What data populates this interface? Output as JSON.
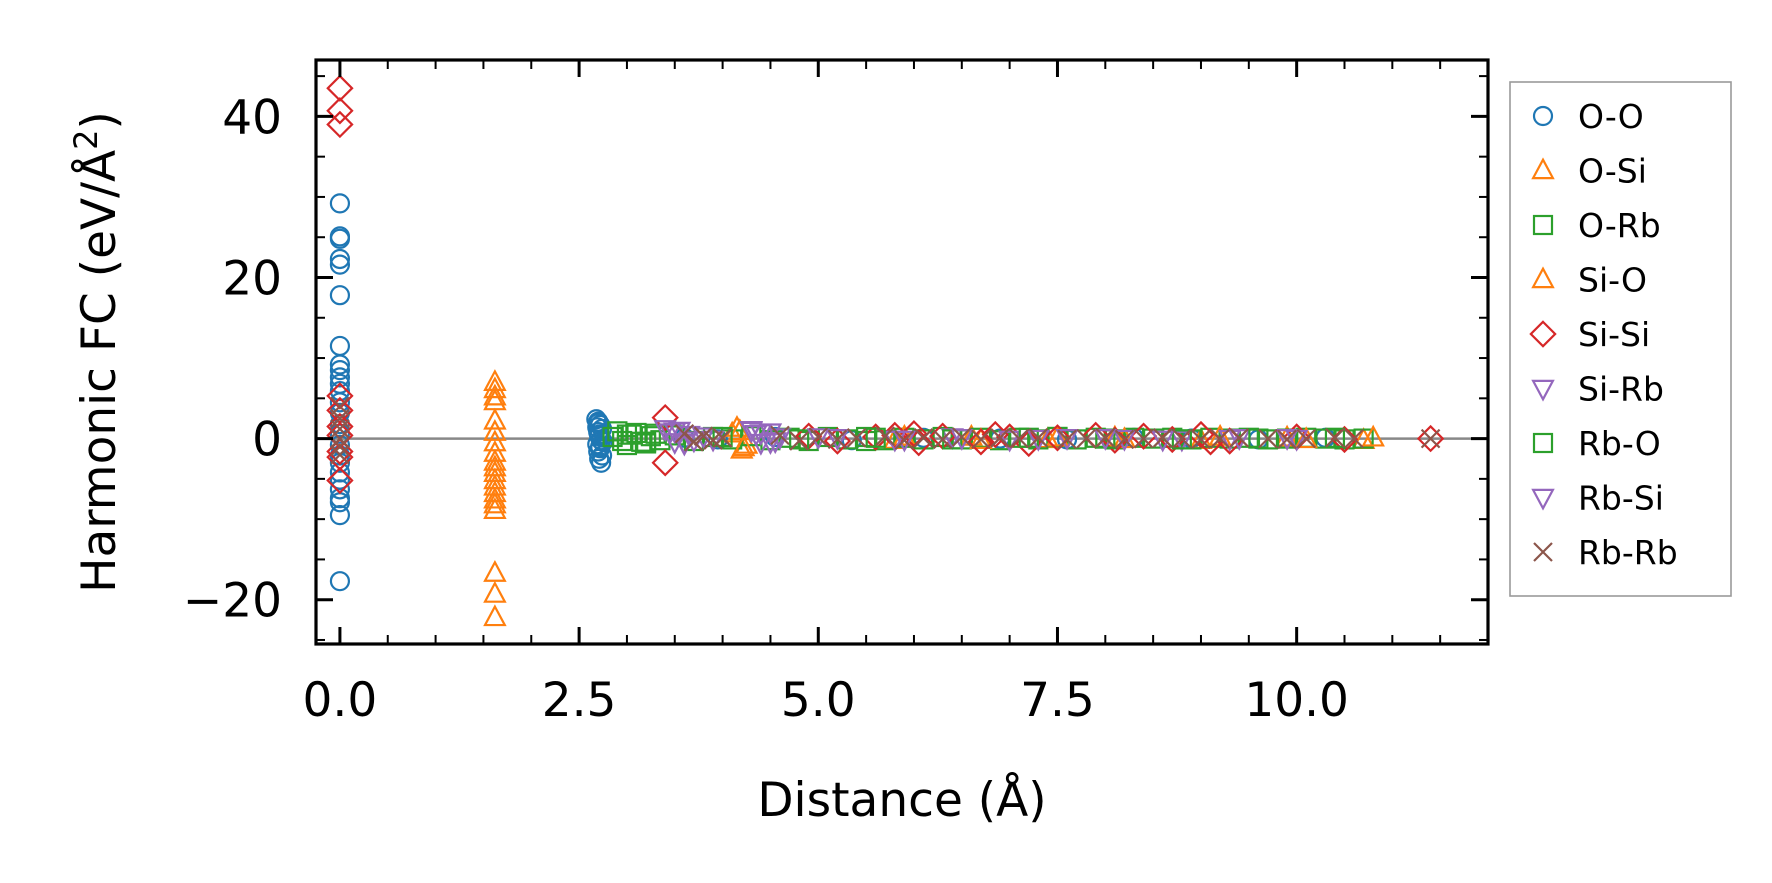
{
  "chart_data": {
    "type": "scatter",
    "title": "",
    "xlabel": "Distance (Å)",
    "ylabel_main": "Harmonic FC (eV/Å",
    "ylabel_sup": "2",
    "ylabel_close": ")",
    "xlim": [
      -0.25,
      12.0
    ],
    "ylim": [
      -25.5,
      47.0
    ],
    "xticks": [
      0.0,
      2.5,
      5.0,
      7.5,
      10.0
    ],
    "xtick_labels": [
      "0.0",
      "2.5",
      "5.0",
      "7.5",
      "10.0"
    ],
    "yticks": [
      -20,
      0,
      20,
      40
    ],
    "ytick_labels": [
      "−20",
      "0",
      "20",
      "40"
    ],
    "xminor_step": 0.5,
    "yminor_step": 5,
    "zero_line": 0,
    "legend_position": "outside-right",
    "series": [
      {
        "name": "O-O",
        "marker": "circle",
        "color": "#1f77b4",
        "x": [
          0,
          0,
          0,
          0,
          0,
          0,
          0,
          0,
          0,
          0,
          0,
          0,
          0,
          0,
          0,
          0,
          0,
          0,
          0,
          0,
          0,
          0,
          0,
          0,
          0,
          0,
          2.68,
          2.7,
          2.72,
          2.74,
          2.7,
          2.71,
          2.73,
          2.69,
          2.72,
          2.7,
          2.74,
          2.71,
          2.73,
          2.7,
          2.72,
          2.71,
          2.75,
          2.69,
          3.6,
          3.95,
          4.55,
          5.35,
          6.1,
          6.9,
          7.6,
          8.3,
          8.9,
          9.6,
          10.3
        ],
        "y": [
          29.2,
          25.1,
          24.8,
          22.3,
          21.6,
          17.8,
          11.5,
          9.2,
          8.5,
          7.6,
          6.8,
          5.9,
          4.5,
          3.2,
          1.8,
          0.6,
          -0.8,
          -2.1,
          -3.0,
          -4.2,
          -5.1,
          -6.3,
          -7.4,
          -7.9,
          -9.5,
          -17.7,
          2.4,
          2.1,
          1.7,
          1.2,
          0.8,
          0.3,
          -0.2,
          -0.7,
          -1.2,
          -1.6,
          -2.1,
          -2.5,
          -3.0,
          1.9,
          -1.0,
          0.5,
          -0.4,
          1.4,
          0.1,
          -0.1,
          0.2,
          -0.2,
          0.1,
          0.0,
          -0.1,
          0.1,
          0.0,
          -0.1,
          0.1
        ]
      },
      {
        "name": "O-Si",
        "marker": "triangle-up",
        "color": "#ff7f0e",
        "x": [
          1.62,
          1.62,
          1.62,
          1.62,
          1.62,
          1.62,
          1.62,
          1.62,
          1.62,
          1.62,
          1.62,
          1.62,
          1.62,
          1.62,
          1.62,
          1.62,
          1.62,
          1.62,
          1.62,
          1.62,
          4.15,
          4.2,
          4.1,
          4.25,
          5.8,
          6.6,
          7.4,
          8.1,
          9.0,
          9.9,
          10.7
        ],
        "y": [
          7.0,
          6.1,
          5.2,
          4.6,
          2.2,
          0.8,
          -0.5,
          -1.8,
          -2.9,
          -3.6,
          -4.3,
          -5.2,
          -6.0,
          -6.8,
          -7.6,
          -8.2,
          -8.9,
          -16.7,
          -19.3,
          -22.2,
          1.3,
          -1.4,
          0.6,
          -0.8,
          -0.2,
          0.2,
          -0.1,
          0.1,
          -0.2,
          0.1,
          -0.2
        ]
      },
      {
        "name": "O-Rb",
        "marker": "square",
        "color": "#2ca02c",
        "x": [
          2.85,
          2.95,
          3.05,
          3.15,
          3.25,
          3.35,
          3.5,
          3.7,
          3.9,
          4.1,
          4.3,
          4.5,
          4.7,
          4.9,
          5.1,
          5.3,
          5.5,
          5.7,
          5.9,
          6.1,
          6.3,
          6.5,
          6.7,
          6.9,
          7.1,
          7.3,
          7.5,
          7.7,
          7.9,
          8.1,
          8.3,
          8.5,
          8.7,
          8.9,
          9.1,
          9.3,
          9.5,
          9.7,
          9.9,
          10.1,
          10.3,
          10.5,
          10.7,
          2.9,
          3.0,
          3.1,
          3.2,
          3.3,
          5.5,
          7.5
        ],
        "y": [
          0.2,
          -0.3,
          0.5,
          -0.4,
          0.3,
          -0.2,
          0.4,
          -0.3,
          0.2,
          -0.1,
          0.3,
          -0.2,
          0.1,
          -0.3,
          0.2,
          -0.1,
          0.2,
          -0.2,
          0.1,
          -0.1,
          0.2,
          -0.1,
          0.1,
          -0.2,
          0.1,
          -0.1,
          0.2,
          -0.1,
          0.1,
          -0.1,
          0.1,
          0.0,
          0.1,
          -0.1,
          0.1,
          0.0,
          0.1,
          -0.1,
          0.0,
          0.1,
          0.0,
          -0.1,
          0.0,
          0.9,
          -0.8,
          0.7,
          -0.6,
          0.6,
          -0.3,
          0.2
        ]
      },
      {
        "name": "Si-O",
        "marker": "triangle-up",
        "color": "#ff7f0e",
        "x": [
          4.18,
          4.22,
          5.9,
          6.7,
          7.5,
          8.2,
          9.2,
          10.1,
          10.8
        ],
        "y": [
          0.9,
          -1.1,
          0.2,
          -0.2,
          0.1,
          -0.1,
          0.2,
          -0.1,
          0.1
        ]
      },
      {
        "name": "Si-Si",
        "marker": "diamond",
        "color": "#d62728",
        "x": [
          0,
          0,
          0,
          0,
          0,
          0,
          0,
          0,
          0,
          0,
          3.4,
          3.4,
          4.9,
          5.2,
          5.6,
          5.8,
          6.0,
          6.05,
          6.3,
          6.7,
          6.85,
          7.0,
          7.2,
          7.5,
          7.9,
          8.1,
          8.4,
          8.7,
          9.0,
          9.1,
          9.3,
          10.0,
          10.5,
          11.4
        ],
        "y": [
          43.5,
          40.7,
          39.0,
          5.3,
          3.5,
          1.5,
          0.4,
          -1.6,
          -2.3,
          -5.2,
          2.6,
          -3.0,
          0.3,
          -0.3,
          0.2,
          0.4,
          0.6,
          -0.5,
          0.3,
          -0.4,
          0.5,
          0.2,
          -0.6,
          0.1,
          0.4,
          -0.2,
          0.3,
          -0.1,
          0.5,
          -0.4,
          -0.3,
          0.2,
          -0.1,
          0.0
        ]
      },
      {
        "name": "Si-Rb",
        "marker": "triangle-down",
        "color": "#9467bd",
        "x": [
          3.4,
          3.45,
          3.5,
          3.55,
          3.6,
          3.65,
          3.7,
          3.8,
          3.9,
          4.3,
          4.35,
          4.4,
          4.5,
          4.55,
          4.6,
          5.2,
          5.8,
          6.4,
          7.0,
          7.6,
          8.2,
          8.8,
          9.4,
          10.0
        ],
        "y": [
          1.2,
          0.8,
          -0.4,
          1.0,
          -0.6,
          0.5,
          -0.2,
          0.3,
          -0.1,
          1.0,
          0.6,
          -0.5,
          0.8,
          -0.3,
          0.2,
          0.1,
          -0.1,
          0.2,
          -0.1,
          0.1,
          0.0,
          -0.1,
          0.1,
          0.0
        ]
      },
      {
        "name": "Rb-O",
        "marker": "square",
        "color": "#2ca02c",
        "x": [
          3.0,
          3.2,
          4.0,
          4.8,
          5.6,
          6.4,
          7.2,
          8.0,
          8.8,
          9.6,
          10.4
        ],
        "y": [
          0.5,
          -0.4,
          0.2,
          -0.1,
          0.1,
          -0.1,
          0.1,
          0.0,
          -0.1,
          0.0,
          0.1
        ]
      },
      {
        "name": "Rb-Si",
        "marker": "triangle-down",
        "color": "#9467bd",
        "x": [
          3.5,
          3.6,
          4.3,
          4.4,
          4.5,
          5.0,
          5.9,
          6.5,
          7.3,
          8.0,
          8.6,
          9.3,
          9.9
        ],
        "y": [
          0.9,
          -0.5,
          1.1,
          0.7,
          -0.4,
          0.2,
          -0.1,
          0.1,
          0.0,
          0.1,
          -0.1,
          0.0,
          0.1
        ]
      },
      {
        "name": "Rb-Rb",
        "marker": "x",
        "color": "#8c564b",
        "x": [
          0,
          0,
          0,
          0,
          0,
          0,
          3.6,
          3.7,
          3.8,
          3.9,
          4.0,
          4.6,
          4.8,
          5.0,
          5.2,
          5.4,
          5.7,
          5.9,
          6.1,
          6.3,
          6.5,
          6.7,
          6.9,
          7.1,
          7.3,
          7.6,
          7.8,
          8.0,
          8.2,
          8.4,
          8.6,
          8.8,
          9.0,
          9.2,
          9.4,
          9.7,
          9.9,
          10.1,
          10.4,
          10.6,
          11.4
        ],
        "y": [
          4.0,
          2.5,
          1.2,
          0.0,
          -1.0,
          -2.0,
          0.6,
          -0.4,
          0.3,
          -0.2,
          0.1,
          0.4,
          -0.3,
          0.2,
          -0.1,
          0.1,
          0.3,
          -0.2,
          0.1,
          -0.1,
          0.2,
          -0.1,
          0.1,
          0.0,
          0.1,
          -0.1,
          0.0,
          0.1,
          -0.1,
          0.0,
          0.1,
          0.0,
          -0.1,
          0.0,
          0.1,
          0.0,
          -0.1,
          0.0,
          0.1,
          0.0,
          0.0
        ]
      }
    ]
  }
}
